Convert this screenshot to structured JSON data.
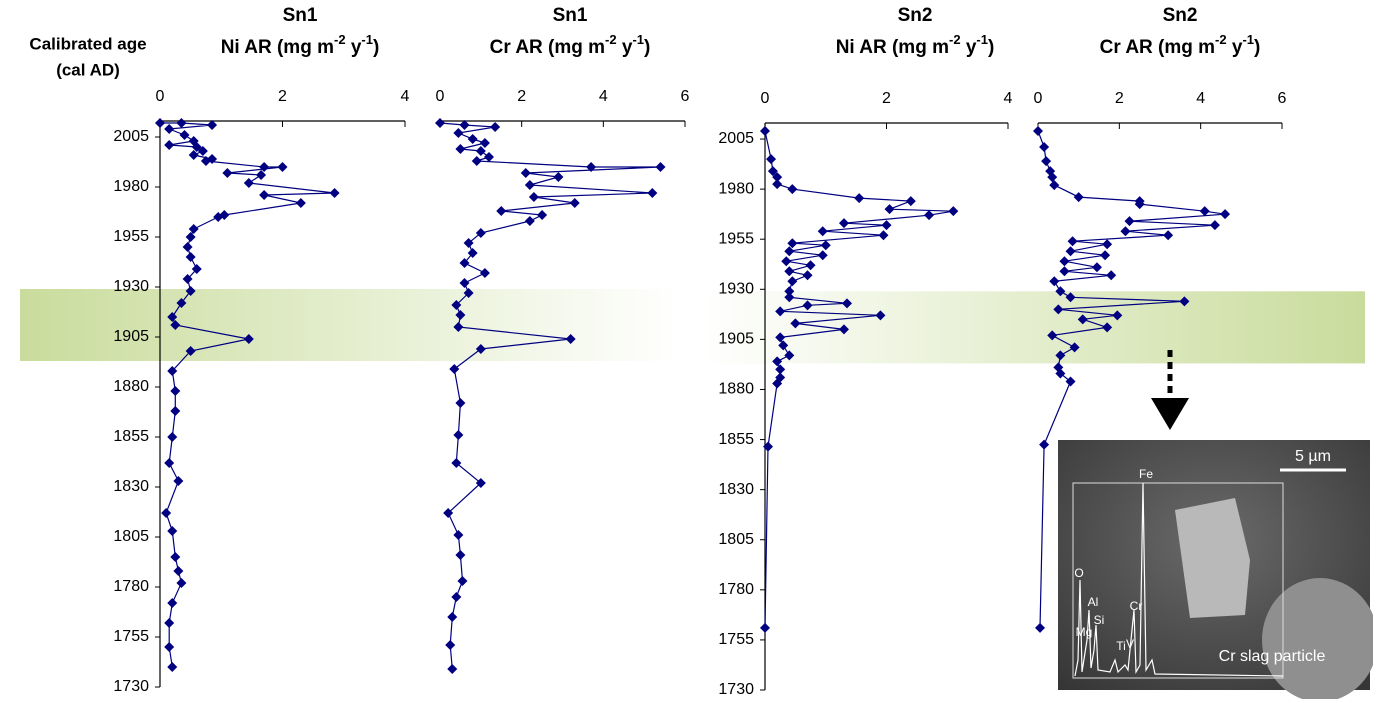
{
  "chart_data": [
    {
      "type": "line",
      "title": "Sn1",
      "unit_label": [
        {
          "text": "Ni AR (mg m"
        },
        {
          "text": "-2",
          "sup": true
        },
        {
          "text": " y"
        },
        {
          "text": "-1",
          "sup": true
        },
        {
          "text": ")"
        }
      ],
      "ylabel": [
        "Calibrated age",
        "(cal AD)"
      ],
      "xlim": [
        0,
        4
      ],
      "xticks": [
        0,
        2,
        4
      ],
      "ylim": [
        1730,
        2013
      ],
      "yticks": [
        2005,
        1980,
        1955,
        1930,
        1905,
        1880,
        1855,
        1830,
        1805,
        1780,
        1755,
        1730
      ],
      "band": [
        1893,
        1929
      ],
      "band_color": "#c9dc9c",
      "series": [
        {
          "color": "#000080",
          "ages": [
            2012,
            2012,
            2011,
            2009,
            2006,
            2003,
            2001,
            2000,
            1998,
            1996,
            1994,
            1993,
            1990,
            1990,
            1987,
            1986,
            1982,
            1977,
            1976,
            1972,
            1966,
            1965,
            1959,
            1955,
            1950,
            1945,
            1939,
            1934,
            1928,
            1922,
            1915,
            1911,
            1904,
            1898,
            1888,
            1878,
            1868,
            1855,
            1842,
            1833,
            1817,
            1808,
            1795,
            1788,
            1782,
            1772,
            1762,
            1750,
            1740
          ],
          "values": [
            0.0,
            0.35,
            0.85,
            0.15,
            0.4,
            0.55,
            0.15,
            0.6,
            0.7,
            0.55,
            0.85,
            0.75,
            1.7,
            2.0,
            1.1,
            1.65,
            1.45,
            2.85,
            1.7,
            2.3,
            1.05,
            0.95,
            0.55,
            0.5,
            0.45,
            0.5,
            0.6,
            0.45,
            0.5,
            0.35,
            0.2,
            0.25,
            1.45,
            0.5,
            0.2,
            0.25,
            0.25,
            0.2,
            0.15,
            0.3,
            0.1,
            0.2,
            0.25,
            0.3,
            0.35,
            0.2,
            0.15,
            0.15,
            0.2
          ]
        }
      ]
    },
    {
      "type": "line",
      "title": "Sn1",
      "unit_label": [
        {
          "text": "Cr AR (mg m"
        },
        {
          "text": "-2",
          "sup": true
        },
        {
          "text": " y"
        },
        {
          "text": "-1",
          "sup": true
        },
        {
          "text": ")"
        }
      ],
      "xlim": [
        0,
        6
      ],
      "xticks": [
        0,
        2,
        4,
        6
      ],
      "ylim": [
        1730,
        2013
      ],
      "series": [
        {
          "color": "#000080",
          "ages": [
            2012,
            2011,
            2010,
            2007,
            2004,
            2002,
            1999,
            1998,
            1995,
            1993,
            1990,
            1990,
            1987,
            1985,
            1981,
            1977,
            1975,
            1972,
            1968,
            1966,
            1963,
            1957,
            1952,
            1947,
            1942,
            1937,
            1932,
            1927,
            1921,
            1916,
            1910,
            1904,
            1899,
            1889,
            1872,
            1856,
            1842,
            1832,
            1817,
            1806,
            1796,
            1783,
            1775,
            1765,
            1751,
            1739
          ],
          "values": [
            0.0,
            0.6,
            1.35,
            0.45,
            0.8,
            1.1,
            0.5,
            1.0,
            1.2,
            0.9,
            3.7,
            5.4,
            2.1,
            2.9,
            2.2,
            5.2,
            2.3,
            3.3,
            1.5,
            2.5,
            2.2,
            1.0,
            0.7,
            0.8,
            0.6,
            1.1,
            0.6,
            0.7,
            0.4,
            0.5,
            0.45,
            3.2,
            1.0,
            0.35,
            0.5,
            0.45,
            0.4,
            1.0,
            0.2,
            0.45,
            0.5,
            0.55,
            0.4,
            0.3,
            0.25,
            0.3
          ]
        }
      ]
    },
    {
      "type": "line",
      "title": "Sn2",
      "unit_label": [
        {
          "text": "Ni AR (mg m"
        },
        {
          "text": "-2",
          "sup": true
        },
        {
          "text": " y"
        },
        {
          "text": "-1",
          "sup": true
        },
        {
          "text": ")"
        }
      ],
      "xlim": [
        0,
        4
      ],
      "xticks": [
        0,
        2,
        4
      ],
      "ylim": [
        1730,
        2013
      ],
      "yticks": [
        2005,
        1980,
        1955,
        1930,
        1905,
        1880,
        1855,
        1830,
        1805,
        1780,
        1755,
        1730
      ],
      "band": [
        1893,
        1929
      ],
      "band_color": "#c9dc9c",
      "series": [
        {
          "color": "#000080",
          "ages": [
            2009,
            1995,
            1989,
            1986,
            1982.5,
            1980,
            1975.5,
            1974,
            1970,
            1969,
            1967,
            1963,
            1962,
            1959,
            1957,
            1953,
            1952,
            1949,
            1947,
            1944,
            1942,
            1939,
            1937,
            1934,
            1929,
            1926,
            1923,
            1922,
            1919,
            1917,
            1913,
            1910,
            1906,
            1902,
            1897,
            1894,
            1890,
            1886,
            1883,
            1851.5,
            1761
          ],
          "values": [
            0.0,
            0.1,
            0.13,
            0.2,
            0.2,
            0.45,
            1.55,
            2.4,
            2.05,
            3.1,
            2.7,
            1.3,
            2.0,
            0.95,
            1.95,
            0.45,
            1.0,
            0.4,
            0.95,
            0.35,
            0.75,
            0.4,
            0.7,
            0.45,
            0.4,
            0.4,
            1.35,
            0.7,
            0.25,
            1.9,
            0.5,
            1.3,
            0.25,
            0.3,
            0.4,
            0.2,
            0.25,
            0.25,
            0.2,
            0.05,
            0.0
          ]
        }
      ]
    },
    {
      "type": "line",
      "title": "Sn2",
      "unit_label": [
        {
          "text": "Cr AR (mg m"
        },
        {
          "text": "-2",
          "sup": true
        },
        {
          "text": " y"
        },
        {
          "text": "-1",
          "sup": true
        },
        {
          "text": ")"
        }
      ],
      "xlim": [
        0,
        6
      ],
      "xticks": [
        0,
        2,
        4,
        6
      ],
      "ylim": [
        1730,
        2013
      ],
      "series": [
        {
          "color": "#000080",
          "ages": [
            2009,
            2001,
            1994,
            1989,
            1986,
            1982,
            1976,
            1974,
            1972.5,
            1969,
            1967.5,
            1964,
            1962,
            1959,
            1957,
            1954,
            1952.5,
            1949,
            1947,
            1944,
            1941,
            1939,
            1937,
            1934,
            1929,
            1926,
            1924,
            1920,
            1917,
            1915,
            1911,
            1907,
            1901,
            1897,
            1891,
            1888,
            1884,
            1852.5,
            1761
          ],
          "values": [
            0.0,
            0.15,
            0.2,
            0.3,
            0.35,
            0.4,
            1.0,
            2.5,
            2.5,
            4.1,
            4.6,
            2.25,
            4.35,
            2.15,
            3.2,
            0.85,
            1.7,
            0.8,
            1.65,
            0.65,
            1.45,
            0.65,
            1.8,
            0.4,
            0.55,
            0.8,
            3.6,
            0.5,
            1.95,
            1.1,
            1.7,
            0.35,
            0.9,
            0.55,
            0.5,
            0.55,
            0.8,
            0.15,
            0.05
          ]
        }
      ]
    }
  ],
  "inset": {
    "scale_bar": "5 µm",
    "caption": "Cr slag particle",
    "peaks": [
      "Fe",
      "O",
      "Al",
      "Si",
      "Mg",
      "Cr",
      "Ti",
      "V"
    ]
  }
}
